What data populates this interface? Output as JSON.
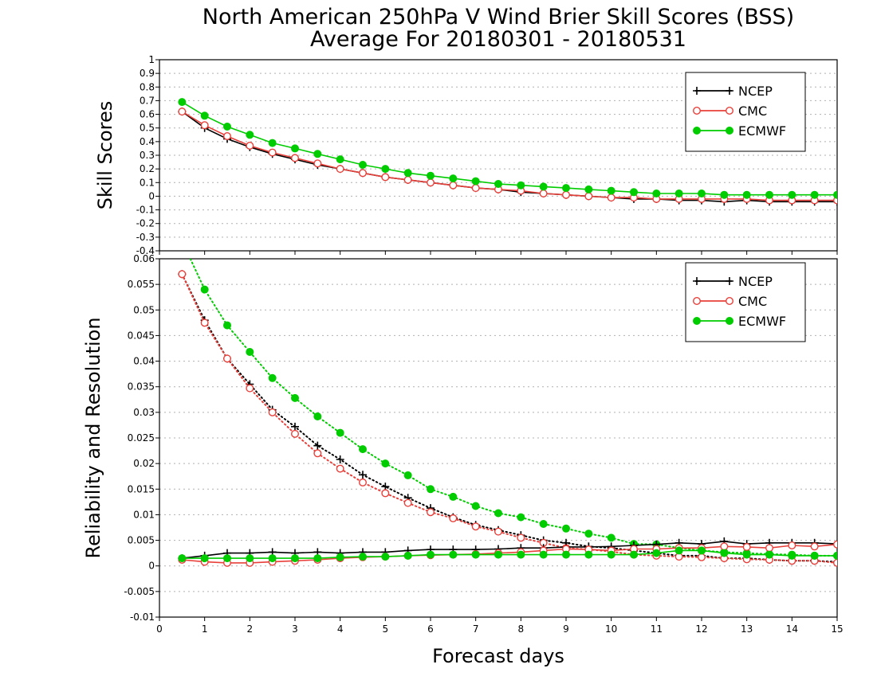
{
  "title_line1": "North American 250hPa V Wind Brier Skill Scores (BSS)",
  "title_line2": "Average For 20180301 - 20180531",
  "colors": {
    "NCEP": "#000000",
    "CMC": "#e8403a",
    "ECMWF": "#00cc00",
    "grid": "#b0b0b0"
  },
  "chart_data": [
    {
      "type": "line",
      "ylabel": "Skill Scores",
      "xlabel": "",
      "xlim": [
        0,
        15
      ],
      "ylim": [
        -0.4,
        1
      ],
      "x_ticks": [
        "0",
        "1",
        "2",
        "3",
        "4",
        "5",
        "6",
        "7",
        "8",
        "9",
        "10",
        "11",
        "12",
        "13",
        "14",
        "15"
      ],
      "y_ticks": [
        "1",
        "0.9",
        "0.8",
        "0.7",
        "0.6",
        "0.5",
        "0.4",
        "0.3",
        "0.2",
        "0.1",
        "0",
        "-0.1",
        "-0.2",
        "-0.3",
        "-0.4"
      ],
      "grid": true,
      "legend": "top-right",
      "x": [
        0.5,
        1,
        1.5,
        2,
        2.5,
        3,
        3.5,
        4,
        4.5,
        5,
        5.5,
        6,
        6.5,
        7,
        7.5,
        8,
        8.5,
        9,
        9.5,
        10,
        10.5,
        11,
        11.5,
        12,
        12.5,
        13,
        13.5,
        14,
        14.5,
        15
      ],
      "series": [
        {
          "name": "NCEP",
          "marker": "plus",
          "style": "solid",
          "values": [
            0.62,
            0.5,
            0.42,
            0.36,
            0.31,
            0.27,
            0.23,
            0.2,
            0.17,
            0.14,
            0.12,
            0.1,
            0.08,
            0.06,
            0.05,
            0.03,
            0.02,
            0.01,
            0.0,
            -0.01,
            -0.02,
            -0.02,
            -0.03,
            -0.03,
            -0.04,
            -0.03,
            -0.04,
            -0.04,
            -0.04,
            -0.04
          ]
        },
        {
          "name": "CMC",
          "marker": "circle-open",
          "style": "solid",
          "values": [
            0.62,
            0.52,
            0.44,
            0.37,
            0.32,
            0.28,
            0.24,
            0.2,
            0.17,
            0.14,
            0.12,
            0.1,
            0.08,
            0.06,
            0.05,
            0.04,
            0.02,
            0.01,
            0.0,
            -0.01,
            -0.01,
            -0.02,
            -0.02,
            -0.02,
            -0.02,
            -0.02,
            -0.03,
            -0.03,
            -0.03,
            -0.03
          ]
        },
        {
          "name": "ECMWF",
          "marker": "circle-filled",
          "style": "solid",
          "values": [
            0.69,
            0.59,
            0.51,
            0.45,
            0.39,
            0.35,
            0.31,
            0.27,
            0.23,
            0.2,
            0.17,
            0.15,
            0.13,
            0.11,
            0.09,
            0.08,
            0.07,
            0.06,
            0.05,
            0.04,
            0.03,
            0.02,
            0.02,
            0.02,
            0.01,
            0.01,
            0.01,
            0.01,
            0.01,
            0.01
          ]
        }
      ]
    },
    {
      "type": "line",
      "ylabel": "Reliability and Resolution",
      "xlabel": "Forecast days",
      "xlim": [
        0,
        15
      ],
      "ylim": [
        -0.01,
        0.06
      ],
      "x_ticks": [
        "0",
        "1",
        "2",
        "3",
        "4",
        "5",
        "6",
        "7",
        "8",
        "9",
        "10",
        "11",
        "12",
        "13",
        "14",
        "15"
      ],
      "y_ticks": [
        "0.06",
        "0.055",
        "0.05",
        "0.045",
        "0.04",
        "0.035",
        "0.03",
        "0.025",
        "0.02",
        "0.015",
        "0.01",
        "0.005",
        "0",
        "-0.005",
        "-0.01"
      ],
      "grid": true,
      "legend": "top-right",
      "x": [
        0.5,
        1,
        1.5,
        2,
        2.5,
        3,
        3.5,
        4,
        4.5,
        5,
        5.5,
        6,
        6.5,
        7,
        7.5,
        8,
        8.5,
        9,
        9.5,
        10,
        10.5,
        11,
        11.5,
        12,
        12.5,
        13,
        13.5,
        14,
        14.5,
        15
      ],
      "series": [
        {
          "name": "NCEP",
          "marker": "plus",
          "style": "dotted",
          "values": [
            0.057,
            0.048,
            0.0405,
            0.0355,
            0.0305,
            0.0272,
            0.0235,
            0.0208,
            0.0178,
            0.0155,
            0.0133,
            0.0113,
            0.0095,
            0.008,
            0.007,
            0.006,
            0.005,
            0.0045,
            0.0038,
            0.0035,
            0.003,
            0.0025,
            0.002,
            0.002,
            0.0015,
            0.0015,
            0.0012,
            0.001,
            0.001,
            0.0008
          ]
        },
        {
          "name": "CMC",
          "marker": "circle-open",
          "style": "dotted",
          "values": [
            0.057,
            0.0475,
            0.0405,
            0.0347,
            0.03,
            0.0258,
            0.022,
            0.019,
            0.0163,
            0.0142,
            0.0123,
            0.0105,
            0.0093,
            0.0077,
            0.0067,
            0.0055,
            0.0045,
            0.0035,
            0.0032,
            0.0028,
            0.0022,
            0.002,
            0.0018,
            0.0017,
            0.0015,
            0.0013,
            0.0012,
            0.001,
            0.001,
            0.0006
          ]
        },
        {
          "name": "ECMWF",
          "marker": "circle-filled",
          "style": "dotted",
          "values": [
            0.0635,
            0.054,
            0.047,
            0.0418,
            0.0367,
            0.0328,
            0.0292,
            0.026,
            0.0228,
            0.02,
            0.0177,
            0.015,
            0.0135,
            0.0117,
            0.0103,
            0.0095,
            0.0082,
            0.0073,
            0.0063,
            0.0055,
            0.0043,
            0.0042,
            0.0035,
            0.003,
            0.0027,
            0.0025,
            0.0023,
            0.0022,
            0.002,
            0.002
          ]
        },
        {
          "name": "NCEP",
          "marker": "plus",
          "style": "solid",
          "values": [
            0.0015,
            0.002,
            0.0025,
            0.0025,
            0.0027,
            0.0025,
            0.0027,
            0.0025,
            0.0027,
            0.0027,
            0.003,
            0.0032,
            0.0032,
            0.0032,
            0.0033,
            0.0035,
            0.0035,
            0.0037,
            0.0037,
            0.0038,
            0.004,
            0.0042,
            0.0045,
            0.0043,
            0.0048,
            0.0043,
            0.0045,
            0.0045,
            0.0045,
            0.0043
          ]
        },
        {
          "name": "CMC",
          "marker": "circle-open",
          "style": "solid",
          "values": [
            0.0012,
            0.0008,
            0.0006,
            0.0006,
            0.0008,
            0.001,
            0.0012,
            0.0015,
            0.0017,
            0.0018,
            0.002,
            0.0021,
            0.0022,
            0.0023,
            0.0025,
            0.0027,
            0.003,
            0.0033,
            0.0032,
            0.003,
            0.0033,
            0.0033,
            0.0035,
            0.0035,
            0.0038,
            0.0037,
            0.0035,
            0.004,
            0.0038,
            0.0042
          ]
        },
        {
          "name": "ECMWF",
          "marker": "circle-filled",
          "style": "solid",
          "values": [
            0.0015,
            0.0015,
            0.0015,
            0.0015,
            0.0015,
            0.0015,
            0.0015,
            0.0017,
            0.0018,
            0.0018,
            0.002,
            0.0022,
            0.0022,
            0.0022,
            0.0022,
            0.0022,
            0.0022,
            0.0022,
            0.0022,
            0.0022,
            0.0022,
            0.0025,
            0.003,
            0.003,
            0.0025,
            0.0022,
            0.0022,
            0.002,
            0.002,
            0.002
          ]
        }
      ]
    }
  ]
}
